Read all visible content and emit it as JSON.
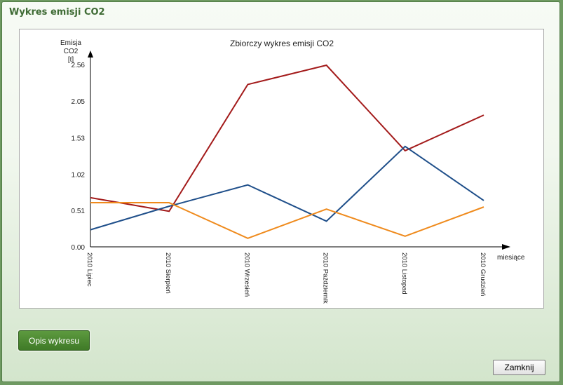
{
  "dialog": {
    "title": "Wykres emisji CO2",
    "describe_button": "Opis wykresu",
    "close_button": "Zamknij"
  },
  "chart_data": {
    "type": "line",
    "title": "Zbiorczy wykres emisji CO2",
    "ylabel": [
      "Emisja",
      "CO2",
      "[t]"
    ],
    "xlabel": "miesiące",
    "categories": [
      "2010 Lipiec",
      "2010 Sierpień",
      "2010 Wrzesień",
      "2010 Październik",
      "2010 Listopad",
      "2010 Grudzień"
    ],
    "yticks": [
      "0.00",
      "0.51",
      "1.02",
      "1.53",
      "2.05",
      "2.56"
    ],
    "ylim": [
      0,
      2.56
    ],
    "grid": false,
    "series": [
      {
        "color": "#a31a1a",
        "values": [
          0.69,
          0.5,
          2.28,
          2.55,
          1.35,
          1.85
        ]
      },
      {
        "color": "#1f4f8a",
        "values": [
          0.24,
          0.57,
          0.87,
          0.36,
          1.41,
          0.65
        ]
      },
      {
        "color": "#ef8a1c",
        "values": [
          0.62,
          0.62,
          0.12,
          0.53,
          0.15,
          0.56
        ]
      }
    ]
  }
}
